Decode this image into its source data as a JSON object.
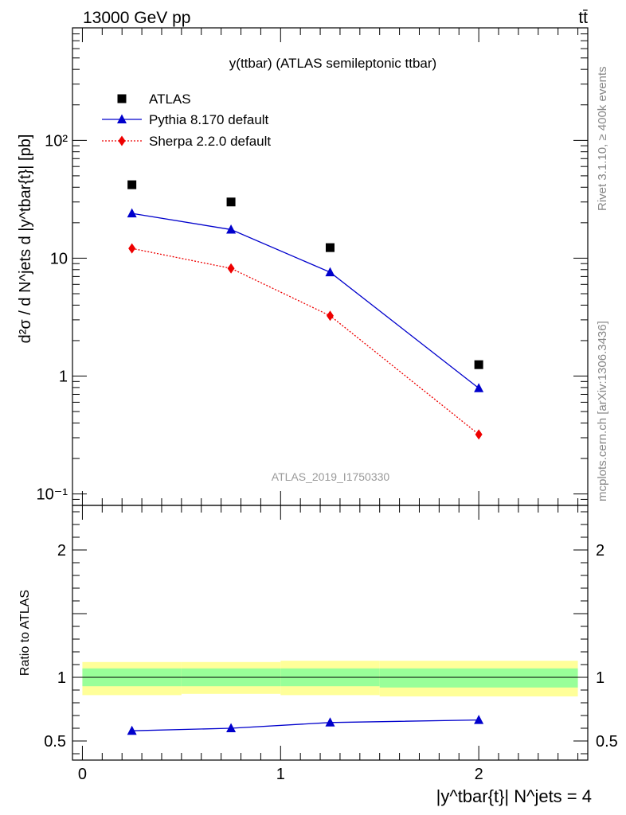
{
  "header": {
    "energy_label": "13000 GeV pp",
    "process_label": "tt̄"
  },
  "side_labels": {
    "rivet": "Rivet 3.1.10, ≥ 400k events",
    "mcplots": "mcplots.cern.ch [arXiv:1306.3436]"
  },
  "chart_data": [
    {
      "type": "line",
      "title": "y(ttbar) (ATLAS semileptonic ttbar)",
      "analysis_id": "ATLAS_2019_I1750330",
      "ylabel": "d²σ / d N^jets d |y^tbar{t}| [pb]",
      "yscale": "log",
      "ylim": [
        0.08,
        900
      ],
      "y_ticks": [
        {
          "value": 0.1,
          "label": "10⁻¹"
        },
        {
          "value": 1,
          "label": "1"
        },
        {
          "value": 10,
          "label": "10"
        },
        {
          "value": 100,
          "label": "10²"
        }
      ],
      "xlim": [
        -0.05,
        2.55
      ],
      "x": [
        0.25,
        0.75,
        1.25,
        2.0
      ],
      "series": [
        {
          "name": "ATLAS",
          "marker": "square",
          "color": "#000000",
          "values": [
            42,
            30,
            12.3,
            1.25
          ]
        },
        {
          "name": "Pythia 8.170 default",
          "marker": "triangle",
          "color": "#0000cc",
          "line": "solid",
          "values": [
            24,
            17.5,
            7.6,
            0.79
          ]
        },
        {
          "name": "Sherpa 2.2.0 default",
          "marker": "diamond",
          "color": "#ee0000",
          "line": "dotted",
          "values": [
            12.1,
            8.2,
            3.25,
            0.32
          ]
        }
      ],
      "legend": "top-left"
    },
    {
      "type": "line",
      "ylabel": "Ratio to ATLAS",
      "xlabel": "|y^tbar{t}| N^jets = 4",
      "ylim": [
        0.35,
        2.35
      ],
      "y_ticks": [
        0.5,
        1,
        2
      ],
      "xlim": [
        -0.05,
        2.55
      ],
      "x_ticks": [
        0,
        1,
        2
      ],
      "bins": [
        [
          0,
          0.5
        ],
        [
          0.5,
          1.0
        ],
        [
          1.0,
          1.5
        ],
        [
          1.5,
          2.5
        ]
      ],
      "band_outer": [
        [
          0.86,
          1.12
        ],
        [
          0.87,
          1.12
        ],
        [
          0.86,
          1.13
        ],
        [
          0.85,
          1.13
        ]
      ],
      "band_inner": [
        [
          0.93,
          1.07
        ],
        [
          0.93,
          1.07
        ],
        [
          0.93,
          1.07
        ],
        [
          0.92,
          1.07
        ]
      ],
      "reference": 1,
      "series": [
        {
          "name": "Pythia 8.170 default",
          "color": "#0000cc",
          "x": [
            0.25,
            0.75,
            1.25,
            2.0
          ],
          "values": [
            0.58,
            0.6,
            0.645,
            0.665
          ],
          "errors": [
            0.01,
            0.01,
            0.012,
            0.025
          ]
        }
      ]
    }
  ]
}
